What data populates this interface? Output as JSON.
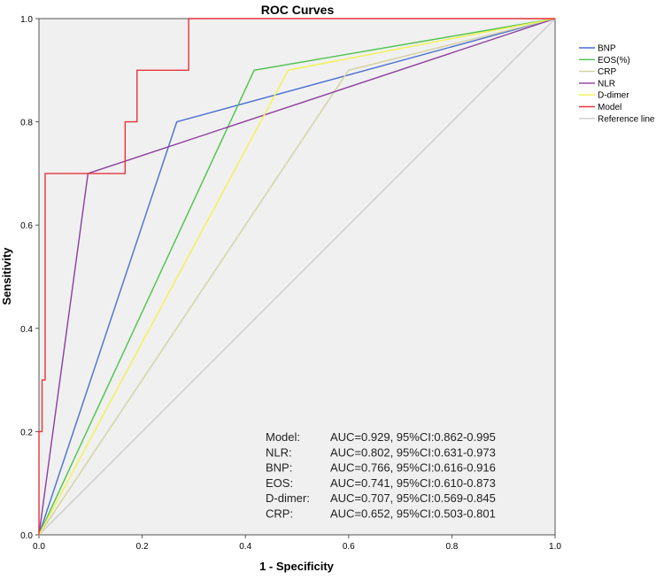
{
  "chart_data": {
    "type": "line",
    "title": "ROC Curves",
    "xlabel": "1 - Specificity",
    "ylabel": "Sensitivity",
    "xlim": [
      0,
      1
    ],
    "ylim": [
      0,
      1
    ],
    "x_ticks": [
      "0.0",
      "0.2",
      "0.4",
      "0.6",
      "0.8",
      "1.0"
    ],
    "y_ticks": [
      "0.0",
      "0.2",
      "0.4",
      "0.6",
      "0.8",
      "1.0"
    ],
    "grid": false,
    "legend_position": "right",
    "series": [
      {
        "name": "BNP",
        "color": "#4a6fd1",
        "points": [
          [
            0,
            0
          ],
          [
            0.267,
            0.8
          ],
          [
            1,
            1
          ]
        ]
      },
      {
        "name": "EOS(%)",
        "color": "#4cc24c",
        "points": [
          [
            0,
            0
          ],
          [
            0.417,
            0.9
          ],
          [
            1,
            1
          ]
        ]
      },
      {
        "name": "CRP",
        "color": "#d2d2a0",
        "points": [
          [
            0,
            0
          ],
          [
            0.6,
            0.9
          ],
          [
            1,
            1
          ]
        ]
      },
      {
        "name": "NLR",
        "color": "#8b3d9e",
        "points": [
          [
            0,
            0
          ],
          [
            0.095,
            0.7
          ],
          [
            1,
            1
          ]
        ]
      },
      {
        "name": "D-dimer",
        "color": "#f2f250",
        "points": [
          [
            0,
            0
          ],
          [
            0.483,
            0.9
          ],
          [
            1,
            1
          ]
        ]
      },
      {
        "name": "Model",
        "color": "#e8333a",
        "points": [
          [
            0,
            0
          ],
          [
            0,
            0.2
          ],
          [
            0.006,
            0.2
          ],
          [
            0.006,
            0.3
          ],
          [
            0.012,
            0.3
          ],
          [
            0.012,
            0.7
          ],
          [
            0.167,
            0.7
          ],
          [
            0.167,
            0.8
          ],
          [
            0.19,
            0.8
          ],
          [
            0.19,
            0.9
          ],
          [
            0.29,
            0.9
          ],
          [
            0.29,
            1.0
          ],
          [
            1,
            1
          ]
        ]
      },
      {
        "name": "Reference line",
        "color": "#cccccc",
        "points": [
          [
            0,
            0
          ],
          [
            1,
            1
          ]
        ]
      }
    ],
    "annotations": [
      {
        "name": "Model:",
        "text": "AUC=0.929, 95%CI:0.862-0.995"
      },
      {
        "name": "NLR:",
        "text": "AUC=0.802, 95%CI:0.631-0.973"
      },
      {
        "name": "BNP:",
        "text": "AUC=0.766, 95%CI:0.616-0.916"
      },
      {
        "name": "EOS:",
        "text": "AUC=0.741, 95%CI:0.610-0.873"
      },
      {
        "name": "D-dimer:",
        "text": "AUC=0.707, 95%CI:0.569-0.845"
      },
      {
        "name": "CRP:",
        "text": "AUC=0.652, 95%CI:0.503-0.801"
      }
    ]
  }
}
